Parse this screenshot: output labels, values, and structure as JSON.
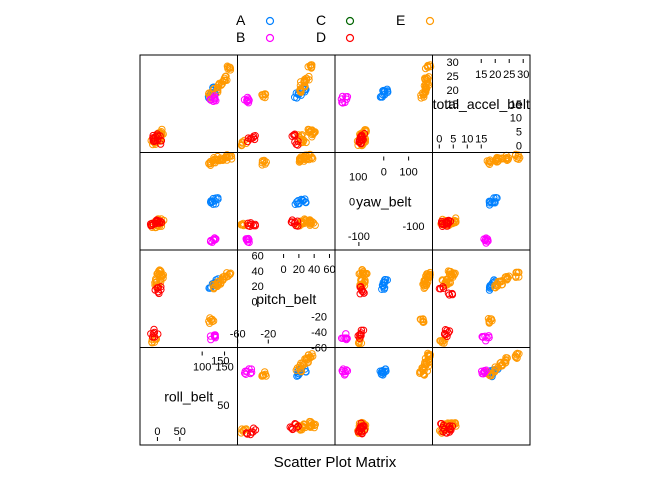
{
  "chart_data": {
    "type": "scatter",
    "chart_kind": "scatter-plot-matrix",
    "xlabel": "Scatter Plot Matrix",
    "legend": {
      "placement": "top",
      "entries": [
        {
          "label": "A",
          "color": "#0080ff"
        },
        {
          "label": "B",
          "color": "#ff00ff"
        },
        {
          "label": "C",
          "color": "#006400"
        },
        {
          "label": "D",
          "color": "#ff0000"
        },
        {
          "label": "E",
          "color": "#ff9900"
        }
      ]
    },
    "variables": [
      {
        "name": "roll_belt",
        "range": [
          -30,
          170
        ],
        "ticks_low": {
          "labels": [
            "0",
            "50"
          ],
          "values": [
            0,
            50
          ]
        },
        "ticks_high": {
          "labels": [
            "100",
            "150"
          ],
          "values": [
            100,
            150
          ]
        },
        "ticks_high_inner": {
          "labels": [
            "150"
          ],
          "values": [
            150
          ]
        },
        "ticks_low_inner": {
          "labels": [
            "50"
          ],
          "values": [
            50
          ]
        }
      },
      {
        "name": "pitch_belt",
        "range": [
          -55,
          62
        ],
        "ticks_low": {
          "labels": [
            "-60",
            "-20"
          ],
          "values": [
            -60,
            -20
          ]
        },
        "ticks_high": {
          "labels": [
            "0",
            "20",
            "40",
            "60"
          ],
          "values": [
            0,
            20,
            40,
            60
          ]
        },
        "ticks_y_high": {
          "labels": [
            "60",
            "40",
            "20",
            "0"
          ],
          "values": [
            60,
            40,
            20,
            0
          ]
        },
        "ticks_y_low": {
          "labels": [
            "-20",
            "-40",
            "-60"
          ],
          "values": [
            -20,
            -40,
            -60
          ]
        }
      },
      {
        "name": "yaw_belt",
        "range": [
          -180,
          180
        ],
        "ticks_low": {
          "labels": [
            "-100"
          ],
          "values": [
            -100
          ]
        },
        "ticks_high": {
          "labels": [
            "0",
            "100"
          ],
          "values": [
            0,
            100
          ]
        },
        "ticks_y_high": {
          "labels": [
            "100",
            "0"
          ],
          "values": [
            100,
            0
          ]
        },
        "ticks_y_low": {
          "labels": [
            "-100"
          ],
          "values": [
            -100
          ]
        }
      },
      {
        "name": "total_accel_belt",
        "range": [
          -1,
          31
        ],
        "ticks_low": {
          "labels": [
            "0",
            "5",
            "10",
            "15"
          ],
          "values": [
            0,
            5,
            10,
            15
          ]
        },
        "ticks_high": {
          "labels": [
            "15",
            "20",
            "25",
            "30"
          ],
          "values": [
            15,
            20,
            25,
            30
          ]
        },
        "ticks_y_high": {
          "labels": [
            "30",
            "25",
            "20",
            "15"
          ],
          "values": [
            30,
            25,
            20,
            15
          ]
        },
        "ticks_y_low": {
          "labels": [
            "15",
            "10",
            "5",
            "0"
          ],
          "values": [
            15,
            10,
            5,
            0
          ]
        }
      }
    ],
    "clusters": [
      {
        "class": "E",
        "roll_belt": [
          -8,
          0,
          2,
          8,
          5
        ],
        "pitch_belt": [
          -52,
          22,
          26,
          34,
          38
        ],
        "yaw_belt": [
          -95,
          -88,
          -82,
          -78,
          -90
        ],
        "total_accel_belt": [
          1,
          3,
          2,
          5,
          4
        ]
      },
      {
        "class": "D",
        "roll_belt": [
          -10,
          -5,
          0,
          4
        ],
        "pitch_belt": [
          -45,
          -40,
          12,
          16
        ],
        "yaw_belt": [
          -92,
          -88,
          -86,
          -90
        ],
        "total_accel_belt": [
          2,
          3,
          4,
          1
        ]
      },
      {
        "class": "A",
        "roll_belt": [
          120,
          125,
          130
        ],
        "pitch_belt": [
          18,
          22,
          26
        ],
        "yaw_belt": [
          -5,
          0,
          5
        ],
        "total_accel_belt": [
          18,
          19,
          20
        ]
      },
      {
        "class": "E",
        "roll_belt": [
          120,
          130,
          140,
          150,
          160
        ],
        "pitch_belt": [
          -25,
          20,
          25,
          30,
          35
        ],
        "yaw_belt": [
          155,
          165,
          170,
          175,
          178
        ],
        "total_accel_belt": [
          18,
          20,
          22,
          24,
          28
        ]
      },
      {
        "class": "B",
        "roll_belt": [
          123,
          125
        ],
        "pitch_belt": [
          -48,
          -45
        ],
        "yaw_belt": [
          -160,
          -155
        ],
        "total_accel_belt": [
          16,
          17
        ]
      }
    ],
    "grid": false
  }
}
